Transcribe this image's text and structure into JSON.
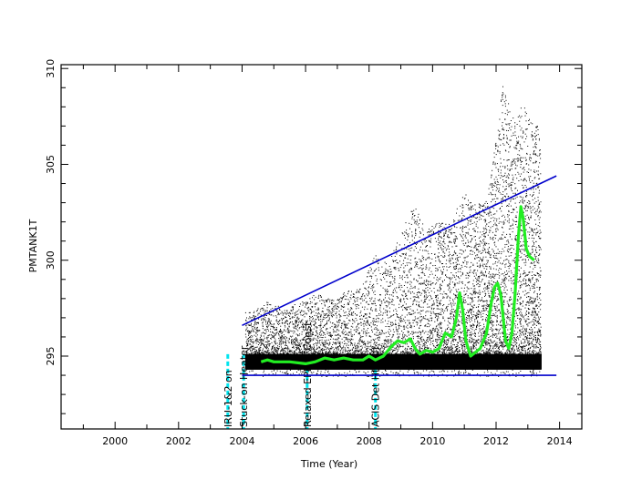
{
  "chart_data": {
    "type": "scatter",
    "title": "",
    "xlabel": "Time (Year)",
    "ylabel": "PMTANK1T",
    "xlim": [
      1998.3,
      2014.7
    ],
    "ylim": [
      291.2,
      310.2
    ],
    "x_ticks": [
      2000,
      2002,
      2004,
      2006,
      2008,
      2010,
      2012,
      2014
    ],
    "y_ticks": [
      295,
      300,
      305,
      310
    ],
    "grid": false,
    "legend": "none",
    "colors": {
      "scatter": "#000000",
      "smooth": "#22ee22",
      "envelope": "#0000cc",
      "events": "#00e5ee",
      "axes": "#000000"
    },
    "event_markers": [
      {
        "x": 2003.55,
        "label": "IRU-1&2 on"
      },
      {
        "x": 2004.05,
        "label": "Stuck-on Heater"
      },
      {
        "x": 2006.05,
        "label": "Relaxed EPHIN Const"
      },
      {
        "x": 2008.2,
        "label": "ACIS Det Htr Off"
      }
    ],
    "series": [
      {
        "type": "scatter",
        "x_range": [
          2004.1,
          2013.4
        ],
        "description_values": {
          "core_band": [
            294.3,
            295.1
          ]
        },
        "spike_envelope": [
          [
            2004.3,
            297.3
          ],
          [
            2004.8,
            297.9
          ],
          [
            2005.3,
            297.5
          ],
          [
            2005.8,
            297.8
          ],
          [
            2006.3,
            298.3
          ],
          [
            2006.8,
            298.0
          ],
          [
            2007.3,
            298.4
          ],
          [
            2007.8,
            298.8
          ],
          [
            2008.2,
            300.4
          ],
          [
            2008.6,
            299.8
          ],
          [
            2009.0,
            301.5
          ],
          [
            2009.4,
            302.9
          ],
          [
            2009.8,
            301.6
          ],
          [
            2010.2,
            302.1
          ],
          [
            2010.6,
            301.9
          ],
          [
            2010.9,
            303.8
          ],
          [
            2011.3,
            302.9
          ],
          [
            2011.7,
            303.1
          ],
          [
            2012.0,
            306.6
          ],
          [
            2012.2,
            309.3
          ],
          [
            2012.5,
            307.5
          ],
          [
            2012.85,
            308.1
          ],
          [
            2013.1,
            307.3
          ],
          [
            2013.4,
            306.9
          ]
        ]
      },
      {
        "type": "line",
        "x": [
          2004.6,
          2004.8,
          2005.0,
          2005.5,
          2006.0,
          2006.3,
          2006.6,
          2006.9,
          2007.2,
          2007.5,
          2007.8,
          2008.0,
          2008.2,
          2008.45,
          2008.7,
          2008.9,
          2009.1,
          2009.3,
          2009.45,
          2009.6,
          2009.8,
          2010.0,
          2010.2,
          2010.4,
          2010.6,
          2010.75,
          2010.85,
          2010.95,
          2011.05,
          2011.2,
          2011.35,
          2011.5,
          2011.7,
          2011.85,
          2011.95,
          2012.05,
          2012.15,
          2012.3,
          2012.4,
          2012.5,
          2012.6,
          2012.7,
          2012.78,
          2012.85,
          2012.95,
          2013.05,
          2013.2
        ],
        "y": [
          294.7,
          294.8,
          294.7,
          294.7,
          294.6,
          294.7,
          294.9,
          294.8,
          294.9,
          294.8,
          294.8,
          295.0,
          294.8,
          295.0,
          295.5,
          295.8,
          295.7,
          295.9,
          295.4,
          295.1,
          295.3,
          295.2,
          295.4,
          296.2,
          296.0,
          297.0,
          298.3,
          297.4,
          295.8,
          295.0,
          295.2,
          295.4,
          296.2,
          297.8,
          298.6,
          298.8,
          298.2,
          295.8,
          295.4,
          296.2,
          298.3,
          301.2,
          302.8,
          302.2,
          300.6,
          300.2,
          300.0
        ]
      },
      {
        "type": "line",
        "x": [
          2004.0,
          2013.9
        ],
        "y": [
          296.6,
          304.4
        ]
      },
      {
        "type": "line",
        "x": [
          2004.0,
          2013.9
        ],
        "y": [
          294.0,
          294.0
        ]
      }
    ]
  }
}
